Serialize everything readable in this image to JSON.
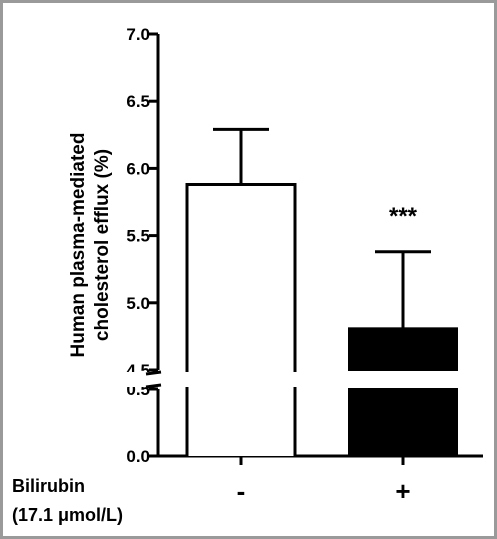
{
  "chart_data": {
    "type": "bar",
    "title": "",
    "ylabel_line1": "Human plasma-mediated",
    "ylabel_line2": "cholesterol efflux (%)",
    "xlabel_line1": "Bilirubin",
    "xlabel_line2": "(17.1 μmol/L)",
    "categories": [
      "-",
      "+"
    ],
    "values": [
      5.88,
      4.81
    ],
    "errors": [
      0.41,
      0.57
    ],
    "bar_fill": [
      "#ffffff",
      "#000000"
    ],
    "annotations": [
      {
        "category": "+",
        "text": "***"
      }
    ],
    "y_axis_broken": true,
    "y_segment_lower": {
      "range": [
        0.0,
        0.5
      ],
      "ticks": [
        "0.0",
        "0.5"
      ]
    },
    "y_segment_upper": {
      "range": [
        4.5,
        7.0
      ],
      "ticks": [
        "4.5",
        "5.0",
        "5.5",
        "6.0",
        "6.5",
        "7.0"
      ]
    },
    "grid": false
  }
}
